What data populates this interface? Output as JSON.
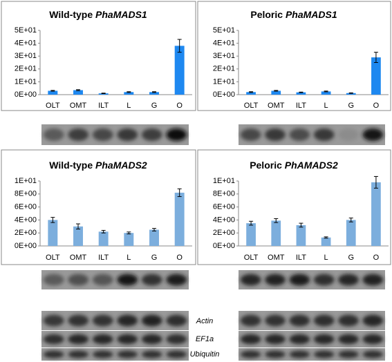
{
  "chart_data": [
    {
      "type": "bar",
      "title": "Wild-type PhaMADS1",
      "categories": [
        "OLT",
        "OMT",
        "ILT",
        "L",
        "G",
        "O"
      ],
      "values": [
        3,
        3.5,
        1,
        2,
        2,
        38
      ],
      "errors": [
        0.3,
        0.4,
        0.2,
        0.3,
        0.3,
        5
      ],
      "color": "#1e88f0",
      "ylim": [
        0,
        50
      ],
      "yticks": [
        {
          "value": 0,
          "label": "0E+00"
        },
        {
          "value": 10,
          "label": "1E+01"
        },
        {
          "value": 20,
          "label": "2E+01"
        },
        {
          "value": 30,
          "label": "3E+01"
        },
        {
          "value": 40,
          "label": "4E+01"
        },
        {
          "value": 50,
          "label": "5E+01"
        }
      ]
    },
    {
      "type": "bar",
      "title": "Peloric PhaMADS1",
      "categories": [
        "OLT",
        "OMT",
        "ILT",
        "L",
        "G",
        "O"
      ],
      "values": [
        2,
        3,
        1.8,
        2.5,
        1.2,
        29
      ],
      "errors": [
        0.3,
        0.3,
        0.2,
        0.3,
        0.2,
        4
      ],
      "color": "#1e88f0",
      "ylim": [
        0,
        50
      ],
      "yticks": [
        {
          "value": 0,
          "label": "0E+00"
        },
        {
          "value": 10,
          "label": "1E+01"
        },
        {
          "value": 20,
          "label": "2E+01"
        },
        {
          "value": 30,
          "label": "3E+01"
        },
        {
          "value": 40,
          "label": "4E+01"
        },
        {
          "value": 50,
          "label": "5E+01"
        }
      ]
    },
    {
      "type": "bar",
      "title": "Wild-type PhaMADS2",
      "categories": [
        "OLT",
        "OMT",
        "ILT",
        "L",
        "G",
        "O"
      ],
      "values": [
        4,
        3,
        2.2,
        2,
        2.5,
        8.2
      ],
      "errors": [
        0.4,
        0.4,
        0.2,
        0.15,
        0.2,
        0.6
      ],
      "color": "#7caedd",
      "ylim": [
        0,
        10
      ],
      "yticks": [
        {
          "value": 0,
          "label": "0E+00"
        },
        {
          "value": 2,
          "label": "2E+00"
        },
        {
          "value": 4,
          "label": "4E+00"
        },
        {
          "value": 6,
          "label": "6E+00"
        },
        {
          "value": 8,
          "label": "8E+00"
        },
        {
          "value": 10,
          "label": "1E+01"
        }
      ]
    },
    {
      "type": "bar",
      "title": "Peloric PhAMADS2",
      "categories": [
        "OLT",
        "OMT",
        "ILT",
        "L",
        "G",
        "O"
      ],
      "values": [
        3.5,
        3.9,
        3.2,
        1.3,
        4,
        9.8
      ],
      "errors": [
        0.3,
        0.3,
        0.3,
        0.1,
        0.3,
        0.9
      ],
      "color": "#7caedd",
      "ylim": [
        0,
        10
      ],
      "yticks": [
        {
          "value": 0,
          "label": "0E+00"
        },
        {
          "value": 2,
          "label": "2E+00"
        },
        {
          "value": 4,
          "label": "4E+00"
        },
        {
          "value": 6,
          "label": "6E+00"
        },
        {
          "value": 8,
          "label": "8E+00"
        },
        {
          "value": 10,
          "label": "1E+01"
        }
      ]
    }
  ],
  "gel_labels": [
    "Actin",
    "EF1a",
    "Ubiquitin"
  ]
}
